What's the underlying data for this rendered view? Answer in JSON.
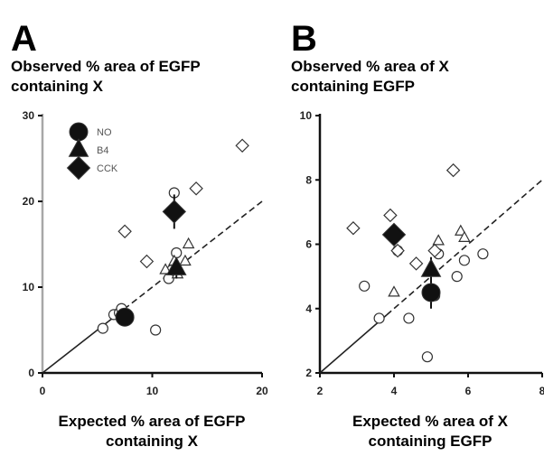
{
  "colors": {
    "axis": "#111111",
    "axis_light": "#a8a8a8",
    "marker_stroke": "#333333",
    "marker_fill_open": "#ffffff",
    "marker_fill_filled": "#111111",
    "fit_line": "#222222"
  },
  "chart_data": [
    {
      "type": "scatter",
      "panel_letter": "A",
      "title_lines": [
        "Observed % area of EGFP",
        "containing X"
      ],
      "xlabel_lines": [
        "Expected % area of EGFP",
        "containing X"
      ],
      "xlim": [
        0,
        20
      ],
      "ylim": [
        0,
        30
      ],
      "xticks": [
        "0",
        "10",
        "20"
      ],
      "yticks": [
        "0",
        "10",
        "20",
        "30"
      ],
      "xtick_values": [
        0,
        10,
        20
      ],
      "ytick_values": [
        0,
        10,
        20,
        30
      ],
      "grid": false,
      "legend_placement": "top-left",
      "legend": [
        {
          "marker": "circle",
          "label": "NO"
        },
        {
          "marker": "triangle",
          "label": "B4"
        },
        {
          "marker": "diamond",
          "label": "CCK"
        }
      ],
      "fit_line": {
        "x": [
          0,
          20
        ],
        "y": [
          0,
          20
        ],
        "style": "solid-then-dashed"
      },
      "series": [
        {
          "name": "NO",
          "marker": "circle",
          "kind": "individual",
          "x": [
            5.5,
            6.5,
            7.0,
            7.2,
            10.3,
            11.5,
            11.8,
            12.2,
            12.0
          ],
          "y": [
            5.2,
            6.8,
            7.0,
            7.5,
            5.0,
            11.0,
            12.0,
            14.0,
            21.0
          ]
        },
        {
          "name": "B4",
          "marker": "triangle",
          "kind": "individual",
          "x": [
            11.2,
            12.0,
            12.3,
            13.0,
            13.3
          ],
          "y": [
            12.0,
            13.0,
            11.5,
            13.0,
            15.0
          ]
        },
        {
          "name": "CCK",
          "marker": "diamond",
          "kind": "individual",
          "x": [
            7.5,
            9.5,
            14.0,
            18.2
          ],
          "y": [
            16.5,
            13.0,
            21.5,
            26.5
          ]
        },
        {
          "name": "NO",
          "marker": "circle",
          "kind": "mean",
          "x": [
            7.5
          ],
          "y": [
            6.5
          ],
          "yerr": [
            0.6
          ]
        },
        {
          "name": "B4",
          "marker": "triangle",
          "kind": "mean",
          "x": [
            12.2
          ],
          "y": [
            12.2
          ],
          "yerr": [
            1.2
          ]
        },
        {
          "name": "CCK",
          "marker": "diamond",
          "kind": "mean",
          "x": [
            12.0
          ],
          "y": [
            18.8
          ],
          "yerr": [
            2.0
          ]
        }
      ]
    },
    {
      "type": "scatter",
      "panel_letter": "B",
      "title_lines": [
        "Observed % area of X",
        "containing EGFP"
      ],
      "xlabel_lines": [
        "Expected % area of X",
        "containing EGFP"
      ],
      "xlim": [
        2,
        8
      ],
      "ylim": [
        2,
        10
      ],
      "xticks": [
        "2",
        "4",
        "6",
        "8"
      ],
      "yticks": [
        "2",
        "4",
        "6",
        "8",
        "10"
      ],
      "xtick_values": [
        2,
        4,
        6,
        8
      ],
      "ytick_values": [
        2,
        4,
        6,
        8,
        10
      ],
      "grid": false,
      "legend": [],
      "fit_line": {
        "x": [
          2,
          8
        ],
        "y": [
          2,
          8
        ],
        "style": "solid-then-dashed"
      },
      "series": [
        {
          "name": "NO",
          "marker": "circle",
          "kind": "individual",
          "x": [
            3.2,
            3.6,
            4.1,
            4.4,
            4.9,
            5.1,
            5.2,
            5.7,
            5.9,
            6.4
          ],
          "y": [
            4.7,
            3.7,
            5.8,
            3.7,
            2.5,
            4.4,
            5.7,
            5.0,
            5.5,
            5.7
          ]
        },
        {
          "name": "B4",
          "marker": "triangle",
          "kind": "individual",
          "x": [
            4.0,
            5.2,
            5.8,
            5.9
          ],
          "y": [
            4.5,
            6.1,
            6.4,
            6.2
          ]
        },
        {
          "name": "CCK",
          "marker": "diamond",
          "kind": "individual",
          "x": [
            2.9,
            3.9,
            4.1,
            4.6,
            5.1,
            5.6
          ],
          "y": [
            6.5,
            6.9,
            5.8,
            5.4,
            5.8,
            8.3
          ]
        },
        {
          "name": "NO",
          "marker": "circle",
          "kind": "mean",
          "x": [
            5.0
          ],
          "y": [
            4.5
          ],
          "yerr": [
            0.5
          ]
        },
        {
          "name": "B4",
          "marker": "triangle",
          "kind": "mean",
          "x": [
            5.0
          ],
          "y": [
            5.2
          ],
          "yerr": [
            0.4
          ]
        },
        {
          "name": "CCK",
          "marker": "diamond",
          "kind": "mean",
          "x": [
            4.0
          ],
          "y": [
            6.3
          ],
          "yerr": [
            0.25
          ]
        }
      ]
    }
  ]
}
